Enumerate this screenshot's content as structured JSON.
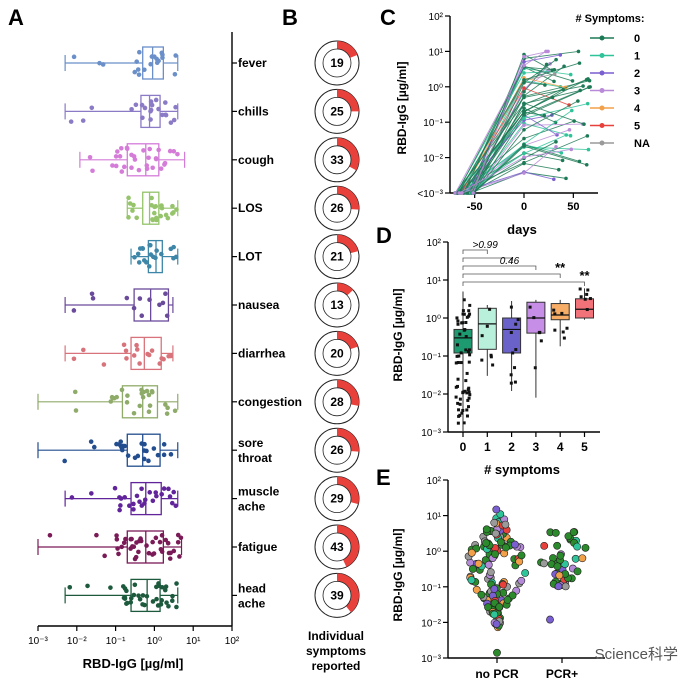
{
  "panels": {
    "A": "A",
    "B": "B",
    "C": "C",
    "D": "D",
    "E": "E"
  },
  "watermark": "Science科学",
  "chart_data": [
    {
      "id": "A",
      "type": "box-scatter",
      "xlabel": "RBD-IgG [µg/ml]",
      "xscale": "log",
      "xlim": [
        0.001,
        100
      ],
      "xticks": [
        "10⁻³",
        "10⁻²",
        "10⁻¹",
        "10⁰",
        "10¹",
        "10²"
      ],
      "categories": [
        {
          "name": "fever",
          "color": "#6a8fc9",
          "whisker": [
            0.005,
            4
          ],
          "q1": 0.5,
          "median": 0.9,
          "q3": 1.7,
          "n": 20
        },
        {
          "name": "chills",
          "color": "#8b7ac6",
          "whisker": [
            0.005,
            4
          ],
          "q1": 0.45,
          "median": 0.75,
          "q3": 1.4,
          "n": 22
        },
        {
          "name": "cough",
          "color": "#d47cd8",
          "whisker": [
            0.012,
            6
          ],
          "q1": 0.2,
          "median": 0.6,
          "q3": 1.3,
          "n": 32
        },
        {
          "name": "LOS",
          "color": "#95c46a",
          "whisker": [
            0.2,
            4
          ],
          "q1": 0.5,
          "median": 0.75,
          "q3": 1.3,
          "n": 24
        },
        {
          "name": "LOT",
          "color": "#3e86a8",
          "whisker": [
            0.25,
            4
          ],
          "q1": 0.7,
          "median": 1.1,
          "q3": 1.6,
          "n": 20
        },
        {
          "name": "nausea",
          "color": "#6a4a9a",
          "whisker": [
            0.005,
            3
          ],
          "q1": 0.3,
          "median": 0.8,
          "q3": 2.3,
          "n": 12
        },
        {
          "name": "diarrhea",
          "color": "#d9737b",
          "whisker": [
            0.005,
            3
          ],
          "q1": 0.25,
          "median": 0.55,
          "q3": 1.5,
          "n": 18
        },
        {
          "name": "congestion",
          "color": "#8fab69",
          "whisker": [
            0.001,
            4
          ],
          "q1": 0.15,
          "median": 0.5,
          "q3": 1.2,
          "n": 26
        },
        {
          "name": "sore throat",
          "color": "#224d8e",
          "whisker": [
            0.001,
            4
          ],
          "q1": 0.2,
          "median": 0.5,
          "q3": 1.4,
          "n": 26
        },
        {
          "name": "muscle ache",
          "color": "#61249b",
          "whisker": [
            0.005,
            4
          ],
          "q1": 0.25,
          "median": 0.6,
          "q3": 1.5,
          "n": 28
        },
        {
          "name": "fatigue",
          "color": "#7a1a57",
          "whisker": [
            0.001,
            5
          ],
          "q1": 0.2,
          "median": 0.6,
          "q3": 1.7,
          "n": 42
        },
        {
          "name": "head ache",
          "color": "#1d5a3d",
          "whisker": [
            0.005,
            4
          ],
          "q1": 0.25,
          "median": 0.65,
          "q3": 1.4,
          "n": 38
        }
      ]
    },
    {
      "id": "B",
      "type": "pie",
      "xlabel": "Individual symptoms reported",
      "values": [
        19,
        25,
        33,
        26,
        21,
        13,
        20,
        28,
        26,
        29,
        43,
        39
      ],
      "labels": [
        "19",
        "25",
        "33",
        "26",
        "21",
        "13",
        "20",
        "28",
        "26",
        "29",
        "43",
        "39"
      ],
      "fill_color": "#e8413c"
    },
    {
      "id": "C",
      "type": "line",
      "ylabel": "RBD-IgG [µg/ml]",
      "xlabel": "days",
      "xticks": [
        "-50",
        "0",
        "50"
      ],
      "yticks": [
        "<10⁻³",
        "10⁻²",
        "10⁻¹",
        "10⁰",
        "10¹",
        "10²"
      ],
      "xlim": [
        -75,
        75
      ],
      "ylim": [
        0.001,
        100
      ],
      "legend_title": "# Symptoms:",
      "legend": [
        {
          "name": "0",
          "color": "#1d7a56"
        },
        {
          "name": "1",
          "color": "#2fc39a"
        },
        {
          "name": "2",
          "color": "#7a5fd0"
        },
        {
          "name": "3",
          "color": "#b98ad8"
        },
        {
          "name": "4",
          "color": "#f2a04a"
        },
        {
          "name": "5",
          "color": "#e8413c"
        },
        {
          "name": "NA",
          "color": "#9a9a9a"
        }
      ]
    },
    {
      "id": "D",
      "type": "box-scatter",
      "ylabel": "RBD-IgG [µg/ml]",
      "xlabel": "# symptoms",
      "yscale": "log",
      "ylim": [
        0.001,
        100
      ],
      "yticks": [
        "10⁻³",
        "10⁻²",
        "10⁻¹",
        "10⁰",
        "10¹",
        "10²"
      ],
      "categories": [
        "0",
        "1",
        "2",
        "3",
        "4",
        "5"
      ],
      "colors": [
        "#1d9a70",
        "#b9f0dc",
        "#6a62c8",
        "#c78ee8",
        "#f7ad66",
        "#f2727a"
      ],
      "boxes": [
        {
          "whisker": [
            0.001,
            5
          ],
          "q1": 0.12,
          "median": 0.3,
          "q3": 0.5
        },
        {
          "whisker": [
            0.03,
            2.2
          ],
          "q1": 0.15,
          "median": 0.7,
          "q3": 1.8
        },
        {
          "whisker": [
            0.012,
            2.8
          ],
          "q1": 0.12,
          "median": 0.5,
          "q3": 1.0
        },
        {
          "whisker": [
            0.008,
            3
          ],
          "q1": 0.4,
          "median": 1.0,
          "q3": 2.6
        },
        {
          "whisker": [
            0.18,
            3
          ],
          "q1": 0.9,
          "median": 1.2,
          "q3": 2.4
        },
        {
          "whisker": [
            0.9,
            6
          ],
          "q1": 1.0,
          "median": 1.7,
          "q3": 3.2
        }
      ],
      "annotations": [
        ">0.99",
        "0.46",
        "**",
        "**"
      ]
    },
    {
      "id": "E",
      "type": "scatter",
      "ylabel": "RBD-IgG [µg/ml]",
      "yscale": "log",
      "ylim": [
        0.001,
        100
      ],
      "yticks": [
        "10⁻³",
        "10⁻²",
        "10⁻¹",
        "10⁰",
        "10¹",
        "10²"
      ],
      "categories": [
        "no PCR",
        "PCR+"
      ]
    }
  ]
}
